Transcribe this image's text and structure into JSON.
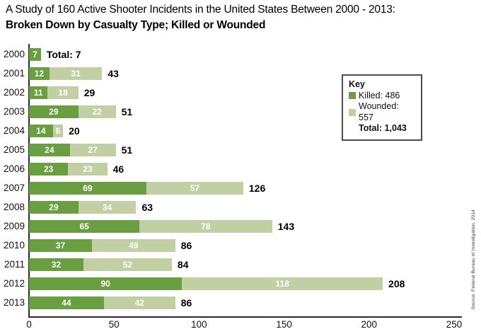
{
  "title": {
    "line1": "A Study of 160 Active Shooter Incidents in the United States Between 2000 - 2013:",
    "line2": "Broken Down by Casualty Type; Killed or Wounded"
  },
  "legend": {
    "title": "Key",
    "killed_label": "Killed: 486",
    "wounded_label": "Wounded: 557",
    "total_label": "Total: 1,043"
  },
  "source": "Source: Federal Bureau of Investigation, 2014",
  "colors": {
    "killed": "#699f41",
    "wounded": "#c2cfa3",
    "axis": "#2b2b2b",
    "text": "#000000"
  },
  "chart_data": {
    "type": "bar",
    "orientation": "horizontal",
    "stacked": true,
    "title": "A Study of 160 Active Shooter Incidents in the United States Between 2000 - 2013: Broken Down by Casualty Type; Killed or Wounded",
    "categories": [
      "2000",
      "2001",
      "2002",
      "2003",
      "2004",
      "2005",
      "2006",
      "2007",
      "2008",
      "2009",
      "2010",
      "2011",
      "2012",
      "2013"
    ],
    "series": [
      {
        "name": "Killed",
        "color": "#699f41",
        "values": [
          7,
          12,
          11,
          29,
          14,
          24,
          23,
          69,
          29,
          65,
          37,
          32,
          90,
          44
        ]
      },
      {
        "name": "Wounded",
        "color": "#c2cfa3",
        "values": [
          0,
          31,
          18,
          22,
          6,
          27,
          23,
          57,
          34,
          78,
          49,
          52,
          118,
          42
        ]
      }
    ],
    "totals": [
      7,
      43,
      29,
      51,
      20,
      51,
      46,
      126,
      63,
      143,
      86,
      84,
      208,
      86
    ],
    "total_labels": [
      "Total: 7",
      "43",
      "29",
      "51",
      "20",
      "51",
      "46",
      "126",
      "63",
      "143",
      "86",
      "84",
      "208",
      "86"
    ],
    "series_totals": {
      "killed": 486,
      "wounded": 557,
      "total": 1043
    },
    "xlim": [
      0,
      250
    ],
    "x_ticks": [
      0,
      50,
      100,
      150,
      200,
      250
    ],
    "legend_position": "upper-right",
    "grid": false
  }
}
